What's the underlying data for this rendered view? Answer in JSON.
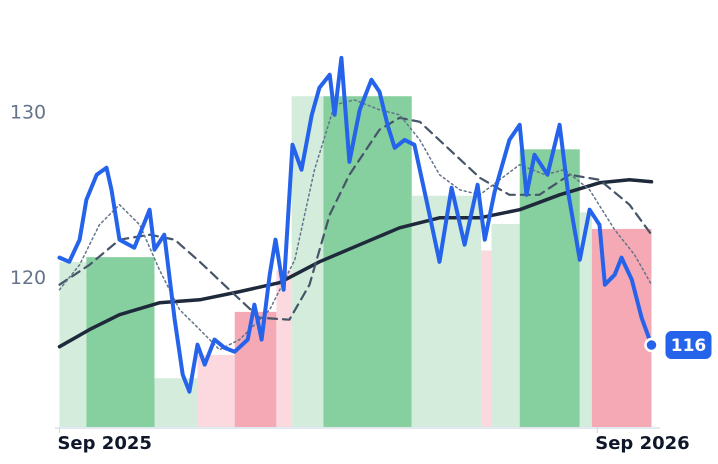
{
  "chart_data": {
    "type": "line",
    "xlim": [
      -0.1,
      13.4
    ],
    "xticks": [
      {
        "value": 0,
        "label": "Sep 2025"
      },
      {
        "value": 12,
        "label": "Sep 2026"
      }
    ],
    "ylim": [
      111,
      136.5
    ],
    "yticks": [
      120,
      130
    ],
    "bands": {
      "edges": [
        0,
        0.6,
        2.12,
        3.08,
        3.91,
        4.84,
        5.18,
        5.89,
        7.86,
        9.41,
        9.64,
        10.27,
        11.61,
        11.88,
        13.21
      ],
      "values": [
        121,
        121.3,
        114,
        115.4,
        118,
        120.5,
        131,
        131,
        125,
        121.7,
        123.3,
        127.8,
        124,
        123
      ],
      "colors": [
        "#d3ecdb",
        "#86cf9e",
        "#d3ecdb",
        "#fcd9de",
        "#f5a9b5",
        "#fcd9de",
        "#d3ecdb",
        "#86cf9e",
        "#d3ecdb",
        "#fcd9de",
        "#d3ecdb",
        "#86cf9e",
        "#d3ecdb",
        "#f5a9b5"
      ]
    },
    "series": [
      {
        "color": "#1e293b",
        "width": 3.5,
        "dash": "none",
        "x": [
          0,
          0.67,
          1.34,
          2.23,
          3.13,
          4.02,
          4.91,
          5.8,
          6.7,
          7.59,
          8.48,
          9.38,
          10.27,
          11.16,
          12.05,
          12.72,
          13.21
        ],
        "values": [
          115.9,
          116.93,
          117.83,
          118.55,
          118.73,
          119.22,
          119.76,
          121.02,
          122.05,
          123.07,
          123.67,
          123.67,
          124.16,
          125.06,
          125.78,
          125.96,
          125.84
        ]
      },
      {
        "color": "#475569",
        "width": 2.2,
        "dash": "9 6",
        "x": [
          0,
          0.67,
          1.34,
          2.01,
          2.57,
          3.13,
          3.79,
          4.46,
          5.13,
          5.58,
          6.03,
          6.47,
          7.14,
          7.59,
          8.04,
          8.71,
          9.38,
          10.04,
          10.71,
          11.38,
          12.05,
          12.72,
          13.21
        ],
        "values": [
          119.64,
          120.84,
          122.35,
          122.65,
          122.35,
          121.02,
          119.34,
          117.65,
          117.53,
          119.64,
          123.86,
          126.27,
          128.98,
          129.7,
          129.46,
          127.77,
          126.08,
          125.06,
          125.06,
          126.27,
          125.96,
          124.46,
          122.65
        ]
      },
      {
        "color": "#64748b",
        "width": 1.5,
        "dash": "2 3",
        "x": [
          0,
          0.45,
          0.89,
          1.34,
          1.79,
          2.23,
          2.68,
          3.13,
          3.57,
          4.02,
          4.69,
          5.25,
          5.69,
          6.14,
          6.58,
          7.14,
          7.59,
          8.04,
          8.48,
          8.93,
          9.38,
          9.82,
          10.27,
          10.83,
          11.27,
          11.83,
          12.39,
          12.83,
          13.21
        ],
        "values": [
          119.34,
          120.84,
          123.25,
          124.46,
          123.25,
          120.54,
          118.13,
          116.93,
          115.72,
          116.33,
          118.13,
          121.14,
          126.57,
          130.48,
          130.78,
          130.18,
          129.88,
          128.37,
          126.27,
          125.36,
          125.06,
          125.96,
          126.87,
          126.27,
          126.57,
          125.36,
          122.95,
          121.45,
          119.64
        ]
      },
      {
        "color": "#2563eb",
        "width": 4,
        "dash": "none",
        "x": [
          0,
          0.22,
          0.45,
          0.6,
          0.83,
          1.05,
          1.16,
          1.34,
          1.67,
          2.01,
          2.12,
          2.34,
          2.57,
          2.75,
          2.9,
          3.08,
          3.24,
          3.46,
          3.68,
          3.91,
          4.2,
          4.35,
          4.51,
          4.69,
          4.82,
          5.0,
          5.2,
          5.4,
          5.63,
          5.8,
          6.03,
          6.14,
          6.29,
          6.47,
          6.7,
          6.96,
          7.14,
          7.32,
          7.48,
          7.7,
          7.92,
          8.21,
          8.48,
          8.75,
          9.04,
          9.33,
          9.49,
          9.71,
          10.04,
          10.27,
          10.42,
          10.6,
          10.89,
          11.16,
          11.34,
          11.61,
          11.83,
          12.05,
          12.17,
          12.39,
          12.54,
          12.77,
          12.99,
          13.21
        ],
        "values": [
          121.27,
          121.02,
          122.35,
          124.76,
          126.27,
          126.69,
          125.36,
          122.35,
          121.87,
          124.16,
          121.75,
          122.65,
          117.53,
          114.22,
          113.19,
          116.02,
          114.82,
          116.33,
          115.84,
          115.6,
          116.33,
          118.43,
          116.33,
          120.24,
          122.35,
          119.34,
          128.07,
          126.57,
          129.88,
          131.51,
          132.29,
          129.88,
          133.31,
          127.05,
          130.18,
          131.99,
          131.27,
          129.28,
          127.89,
          128.37,
          128.07,
          124.46,
          121.02,
          125.48,
          122.05,
          125.66,
          122.35,
          125.24,
          128.37,
          129.28,
          125.06,
          127.47,
          126.27,
          129.28,
          125.36,
          121.14,
          124.16,
          123.25,
          119.64,
          120.24,
          121.27,
          119.94,
          117.65,
          116
        ]
      }
    ]
  }
}
